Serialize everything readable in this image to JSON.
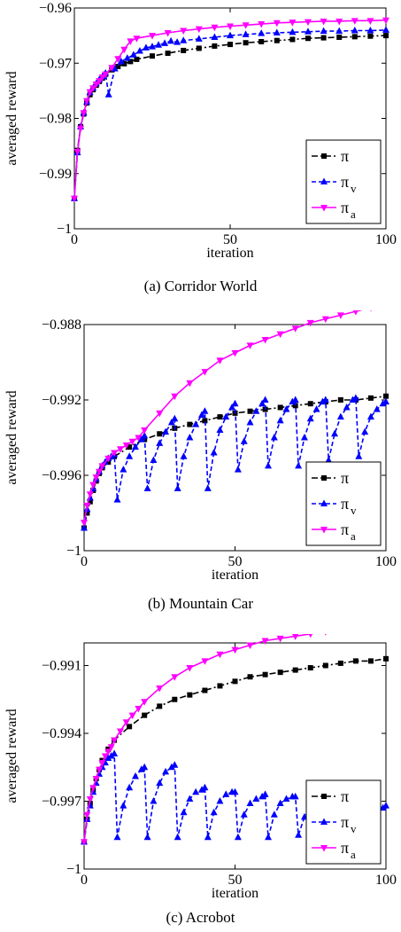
{
  "chart_data": [
    {
      "type": "line",
      "caption": "(a) Corridor World",
      "xlabel": "iteration",
      "ylabel": "averaged reward",
      "xlim": [
        0,
        100
      ],
      "ylim": [
        -1,
        -0.96
      ],
      "xticks": [
        0,
        50,
        100
      ],
      "xtick_labels": [
        "0",
        "50",
        "100"
      ],
      "yticks": [
        -1,
        -0.99,
        -0.98,
        -0.97,
        -0.96
      ],
      "ytick_labels": [
        "−1",
        "−0.99",
        "−0.98",
        "−0.97",
        "−0.96"
      ],
      "grid": false,
      "legend_position": "bottom-right",
      "series": [
        {
          "name": "π",
          "sub": "",
          "color": "#000000",
          "marker": "square",
          "dash": "dashdot",
          "x": [
            0,
            1,
            2,
            3,
            4,
            5,
            6,
            7,
            8,
            9,
            10,
            12,
            14,
            16,
            18,
            20,
            25,
            30,
            35,
            40,
            45,
            50,
            55,
            60,
            65,
            70,
            75,
            80,
            85,
            90,
            95,
            100
          ],
          "y": [
            -0.9945,
            -0.9858,
            -0.9815,
            -0.9792,
            -0.9772,
            -0.9757,
            -0.9748,
            -0.974,
            -0.9733,
            -0.9727,
            -0.972,
            -0.9712,
            -0.9706,
            -0.9701,
            -0.9697,
            -0.9693,
            -0.9687,
            -0.9682,
            -0.9677,
            -0.9673,
            -0.9669,
            -0.9666,
            -0.9663,
            -0.9661,
            -0.9659,
            -0.9657,
            -0.9655,
            -0.9654,
            -0.9653,
            -0.9652,
            -0.9651,
            -0.965
          ]
        },
        {
          "name": "π",
          "sub": "v",
          "color": "#0000ff",
          "marker": "triangle-up",
          "dash": "dashed",
          "x": [
            0,
            1,
            2,
            3,
            4,
            5,
            6,
            7,
            8,
            9,
            10,
            11,
            13,
            15,
            17,
            19,
            21,
            23,
            25,
            27,
            29,
            31,
            33,
            35,
            40,
            45,
            50,
            55,
            60,
            65,
            70,
            75,
            80,
            85,
            90,
            95,
            100
          ],
          "y": [
            -0.9945,
            -0.9862,
            -0.9815,
            -0.979,
            -0.977,
            -0.9753,
            -0.9745,
            -0.9737,
            -0.973,
            -0.9724,
            -0.9718,
            -0.9757,
            -0.971,
            -0.9697,
            -0.9691,
            -0.9685,
            -0.9678,
            -0.9672,
            -0.967,
            -0.9667,
            -0.9664,
            -0.966,
            -0.9662,
            -0.9659,
            -0.9656,
            -0.9653,
            -0.965,
            -0.9648,
            -0.9646,
            -0.9645,
            -0.9644,
            -0.9643,
            -0.9642,
            -0.9642,
            -0.9641,
            -0.9641,
            -0.964
          ]
        },
        {
          "name": "π",
          "sub": "a",
          "color": "#ff00ff",
          "marker": "triangle-down",
          "dash": "solid",
          "x": [
            0,
            1,
            2,
            3,
            4,
            5,
            6,
            7,
            8,
            9,
            10,
            12,
            14,
            16,
            18,
            20,
            25,
            30,
            35,
            40,
            45,
            50,
            55,
            60,
            65,
            70,
            75,
            80,
            85,
            90,
            95,
            100
          ],
          "y": [
            -0.9945,
            -0.986,
            -0.9818,
            -0.979,
            -0.9768,
            -0.9752,
            -0.9745,
            -0.9738,
            -0.9732,
            -0.9725,
            -0.972,
            -0.9708,
            -0.9692,
            -0.9675,
            -0.966,
            -0.9655,
            -0.965,
            -0.9645,
            -0.9641,
            -0.9638,
            -0.9635,
            -0.9633,
            -0.9631,
            -0.9629,
            -0.9627,
            -0.9626,
            -0.9625,
            -0.9624,
            -0.9624,
            -0.9623,
            -0.9623,
            -0.9622
          ]
        }
      ]
    },
    {
      "type": "line",
      "caption": "(b) Mountain Car",
      "xlabel": "iteration",
      "ylabel": "averaged reward",
      "xlim": [
        0,
        100
      ],
      "ylim": [
        -1,
        -0.988
      ],
      "xticks": [
        0,
        50,
        100
      ],
      "xtick_labels": [
        "0",
        "50",
        "100"
      ],
      "yticks": [
        -1,
        -0.996,
        -0.992,
        -0.988
      ],
      "ytick_labels": [
        "−1",
        "−0.996",
        "−0.992",
        "−0.988"
      ],
      "grid": false,
      "legend_position": "bottom-right",
      "series": [
        {
          "name": "π",
          "sub": "",
          "color": "#000000",
          "marker": "square",
          "dash": "dashdot",
          "x": [
            0,
            1,
            2,
            3,
            4,
            5,
            6,
            8,
            10,
            15,
            20,
            25,
            30,
            35,
            40,
            45,
            50,
            55,
            60,
            65,
            70,
            75,
            80,
            85,
            90,
            95,
            100
          ],
          "y": [
            -0.9988,
            -0.998,
            -0.9974,
            -0.9968,
            -0.9963,
            -0.9959,
            -0.9956,
            -0.9953,
            -0.995,
            -0.9945,
            -0.9941,
            -0.9938,
            -0.9935,
            -0.9933,
            -0.9931,
            -0.9929,
            -0.9927,
            -0.9926,
            -0.9925,
            -0.9924,
            -0.9923,
            -0.9922,
            -0.9921,
            -0.992,
            -0.992,
            -0.9919,
            -0.9918
          ]
        },
        {
          "name": "π",
          "sub": "v",
          "color": "#0000ff",
          "marker": "triangle-up",
          "dash": "dashed",
          "x": [
            0,
            1,
            2,
            3,
            4,
            5,
            6,
            7,
            8,
            9,
            10,
            11,
            13,
            15,
            17,
            19,
            20,
            21,
            23,
            25,
            27,
            29,
            30,
            31,
            33,
            35,
            37,
            39,
            40,
            41,
            43,
            45,
            47,
            49,
            50,
            51,
            53,
            55,
            57,
            59,
            60,
            61,
            63,
            65,
            67,
            69,
            70,
            71,
            73,
            75,
            77,
            79,
            80,
            81,
            83,
            85,
            87,
            89,
            90,
            91,
            93,
            95,
            97,
            99,
            100
          ],
          "y": [
            -0.9988,
            -0.9978,
            -0.9972,
            -0.9967,
            -0.9962,
            -0.9958,
            -0.9955,
            -0.9953,
            -0.9951,
            -0.995,
            -0.9949,
            -0.9973,
            -0.9957,
            -0.995,
            -0.9945,
            -0.9941,
            -0.9939,
            -0.9967,
            -0.9952,
            -0.9943,
            -0.9937,
            -0.9932,
            -0.993,
            -0.9967,
            -0.995,
            -0.994,
            -0.9933,
            -0.9928,
            -0.9926,
            -0.9967,
            -0.9948,
            -0.9936,
            -0.9929,
            -0.9924,
            -0.9922,
            -0.9957,
            -0.9942,
            -0.9932,
            -0.9926,
            -0.9922,
            -0.992,
            -0.9955,
            -0.994,
            -0.9931,
            -0.9925,
            -0.9921,
            -0.992,
            -0.9955,
            -0.994,
            -0.993,
            -0.9925,
            -0.9921,
            -0.992,
            -0.9952,
            -0.9938,
            -0.9929,
            -0.9924,
            -0.992,
            -0.9919,
            -0.995,
            -0.9937,
            -0.9929,
            -0.9925,
            -0.9922,
            -0.9921
          ]
        },
        {
          "name": "π",
          "sub": "a",
          "color": "#ff00ff",
          "marker": "triangle-down",
          "dash": "solid",
          "x": [
            0,
            1,
            2,
            3,
            4,
            5,
            6,
            8,
            10,
            12,
            14,
            16,
            18,
            20,
            25,
            30,
            35,
            40,
            45,
            50,
            55,
            60,
            65,
            70,
            75,
            80,
            85,
            90,
            95,
            100
          ],
          "y": [
            -0.9985,
            -0.9976,
            -0.997,
            -0.9965,
            -0.9961,
            -0.9958,
            -0.9955,
            -0.9951,
            -0.9948,
            -0.9946,
            -0.9944,
            -0.9942,
            -0.994,
            -0.9936,
            -0.9927,
            -0.9918,
            -0.9911,
            -0.9905,
            -0.9899,
            -0.9895,
            -0.9891,
            -0.9888,
            -0.9885,
            -0.9882,
            -0.9879,
            -0.9877,
            -0.9875,
            -0.9873,
            -0.9871,
            -0.987
          ]
        }
      ]
    },
    {
      "type": "line",
      "caption": "(c) Acrobot",
      "xlabel": "iteration",
      "ylabel": "averaged reward",
      "xlim": [
        0,
        100
      ],
      "ylim": [
        -1,
        -0.99
      ],
      "xticks": [
        0,
        50,
        100
      ],
      "xtick_labels": [
        "0",
        "50",
        "100"
      ],
      "yticks": [
        -1,
        -0.997,
        -0.994,
        -0.991
      ],
      "ytick_labels": [
        "−1",
        "−0.997",
        "−0.994",
        "−0.991"
      ],
      "grid": false,
      "legend_position": "bottom-right",
      "series": [
        {
          "name": "π",
          "sub": "",
          "color": "#000000",
          "marker": "square",
          "dash": "dashdot",
          "x": [
            0,
            1,
            2,
            3,
            4,
            5,
            6,
            8,
            10,
            15,
            20,
            25,
            30,
            35,
            40,
            45,
            50,
            55,
            60,
            65,
            70,
            75,
            80,
            85,
            90,
            95,
            100
          ],
          "y": [
            -0.9988,
            -0.9978,
            -0.9971,
            -0.9965,
            -0.996,
            -0.9956,
            -0.9952,
            -0.9947,
            -0.9943,
            -0.9937,
            -0.9932,
            -0.9928,
            -0.9925,
            -0.9923,
            -0.9921,
            -0.9919,
            -0.9917,
            -0.9915,
            -0.9914,
            -0.9913,
            -0.9912,
            -0.9911,
            -0.991,
            -0.9909,
            -0.9908,
            -0.9908,
            -0.9907
          ]
        },
        {
          "name": "π",
          "sub": "v",
          "color": "#0000ff",
          "marker": "triangle-up",
          "dash": "dashed",
          "x": [
            0,
            1,
            2,
            3,
            4,
            5,
            6,
            7,
            8,
            9,
            10,
            11,
            13,
            15,
            17,
            19,
            20,
            21,
            23,
            25,
            27,
            29,
            30,
            31,
            33,
            35,
            37,
            39,
            40,
            41,
            43,
            45,
            47,
            49,
            50,
            51,
            53,
            55,
            57,
            59,
            60,
            61,
            63,
            65,
            67,
            69,
            70,
            71,
            73,
            75,
            77,
            79,
            80,
            81,
            83,
            85,
            87,
            89,
            90,
            91,
            93,
            95,
            97,
            99,
            100
          ],
          "y": [
            -0.9988,
            -0.9978,
            -0.9972,
            -0.9966,
            -0.9962,
            -0.9958,
            -0.9955,
            -0.9953,
            -0.9951,
            -0.995,
            -0.9949,
            -0.9986,
            -0.9972,
            -0.9964,
            -0.9959,
            -0.9956,
            -0.9955,
            -0.9986,
            -0.997,
            -0.9962,
            -0.9957,
            -0.9955,
            -0.9954,
            -0.9986,
            -0.9975,
            -0.9969,
            -0.9966,
            -0.9965,
            -0.9964,
            -0.9986,
            -0.9975,
            -0.997,
            -0.9967,
            -0.9966,
            -0.9966,
            -0.9986,
            -0.9976,
            -0.9971,
            -0.9969,
            -0.9968,
            -0.9967,
            -0.9986,
            -0.9976,
            -0.9971,
            -0.9969,
            -0.9968,
            -0.9968,
            -0.9985,
            -0.9977,
            -0.9973,
            -0.9971,
            -0.997,
            -0.997,
            -0.9985,
            -0.9978,
            -0.9974,
            -0.9972,
            -0.9971,
            -0.9971,
            -0.9984,
            -0.9979,
            -0.9976,
            -0.9974,
            -0.9973,
            -0.9972
          ]
        },
        {
          "name": "π",
          "sub": "a",
          "color": "#ff00ff",
          "marker": "triangle-down",
          "dash": "solid",
          "x": [
            0,
            1,
            2,
            3,
            4,
            5,
            6,
            7,
            8,
            9,
            10,
            12,
            14,
            16,
            18,
            20,
            25,
            30,
            35,
            40,
            45,
            50,
            55,
            60,
            65,
            70,
            75,
            80,
            85,
            90,
            95,
            100
          ],
          "y": [
            -0.9988,
            -0.9976,
            -0.9969,
            -0.9964,
            -0.996,
            -0.9956,
            -0.9953,
            -0.995,
            -0.9948,
            -0.9946,
            -0.9943,
            -0.9939,
            -0.9935,
            -0.9932,
            -0.9929,
            -0.9926,
            -0.992,
            -0.9915,
            -0.9911,
            -0.9908,
            -0.9905,
            -0.9903,
            -0.9901,
            -0.9899,
            -0.9898,
            -0.9897,
            -0.9896,
            -0.9895,
            -0.9894,
            -0.9893,
            -0.9892,
            -0.9892
          ]
        }
      ]
    }
  ]
}
